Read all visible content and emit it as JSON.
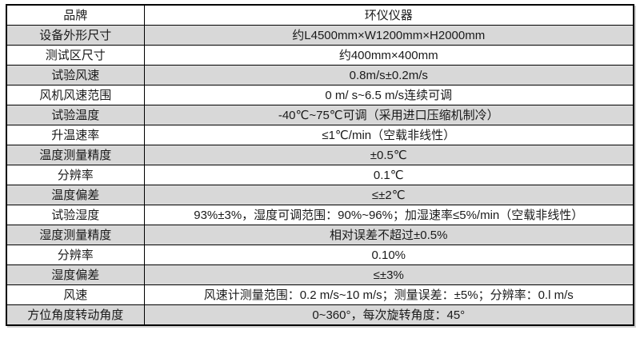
{
  "table": {
    "rows": [
      {
        "label": "品牌",
        "value": "环仪仪器"
      },
      {
        "label": "设备外形尺寸",
        "value": "约L4500mm×W1200mm×H2000mm"
      },
      {
        "label": "测试区尺寸",
        "value": "约400mm×400mm"
      },
      {
        "label": "试验风速",
        "value": "0.8m/s±0.2m/s"
      },
      {
        "label": "风机风速范围",
        "value": "0 m/ s~6.5 m/s连续可调"
      },
      {
        "label": "试验温度",
        "value": "-40℃~75℃可调（采用进口压缩机制冷）"
      },
      {
        "label": "升温速率",
        "value": "≤1℃/min（空载非线性）"
      },
      {
        "label": "温度测量精度",
        "value": "±0.5℃"
      },
      {
        "label": "分辨率",
        "value": "0.1℃"
      },
      {
        "label": "温度偏差",
        "value": "≤±2℃"
      },
      {
        "label": "试验湿度",
        "value": "93%±3%，湿度可调范围：90%~96%；加湿速率≤5%/min（空载非线性）"
      },
      {
        "label": "湿度测量精度",
        "value": "相对误差不超过±0.5%"
      },
      {
        "label": "分辨率",
        "value": "0.10%"
      },
      {
        "label": "湿度偏差",
        "value": "≤±3%"
      },
      {
        "label": "风速",
        "value": "风速计测量范围：0.2 m/s~10 m/s；测量误差：±5%；分辨率：0.l m/s"
      },
      {
        "label": "方位角度转动角度",
        "value": "0~360°，每次旋转角度：45°"
      }
    ],
    "colors": {
      "stripe_gray": "#d8d8d8",
      "border": "#000000",
      "text": "#1a1a1a"
    }
  }
}
